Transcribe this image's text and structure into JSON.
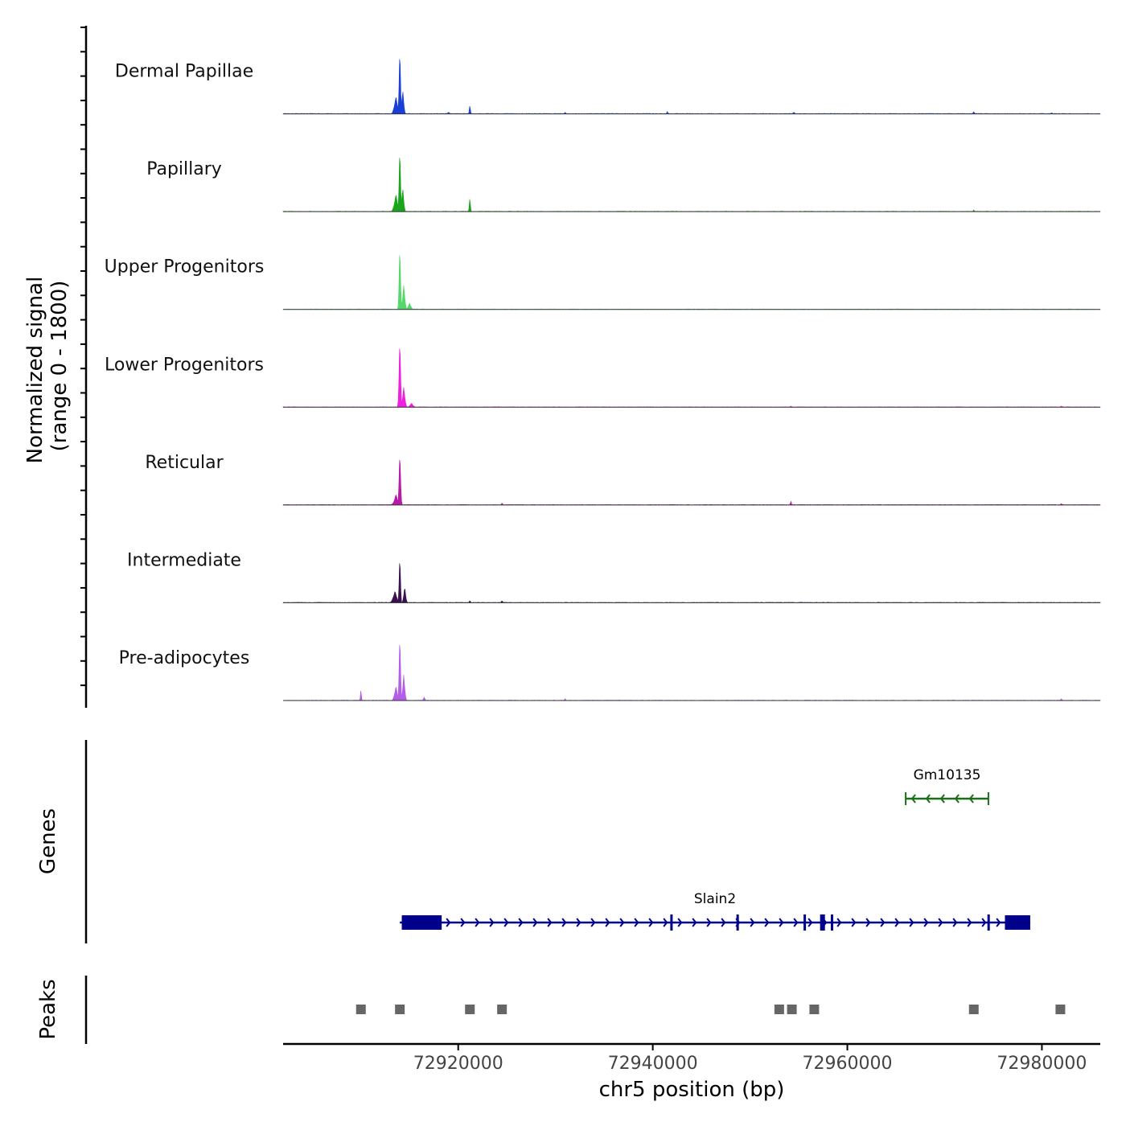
{
  "chart_data": {
    "type": "area",
    "title": "",
    "y_axis_title_line1": "Normalized signal",
    "y_axis_title_line2": "(range 0 - 1800)",
    "ylim": [
      0,
      1800
    ],
    "xlabel": "chr5 position (bp)",
    "xlim": [
      72902000,
      72986000
    ],
    "x_ticks": [
      72920000,
      72940000,
      72960000,
      72980000
    ],
    "x_tick_labels": [
      "72920000",
      "72940000",
      "72960000",
      "72980000"
    ],
    "tracks": [
      {
        "name": "Dermal Papillae",
        "color": "#1a3fd6",
        "peaks": [
          {
            "pos": 72914000,
            "height": 1750,
            "width": 220
          },
          {
            "pos": 72913600,
            "height": 420,
            "width": 500
          },
          {
            "pos": 72914300,
            "height": 600,
            "width": 300
          },
          {
            "pos": 72921200,
            "height": 230,
            "width": 160
          },
          {
            "pos": 72919000,
            "height": 40,
            "width": 200
          },
          {
            "pos": 72931000,
            "height": 40,
            "width": 150
          },
          {
            "pos": 72941500,
            "height": 60,
            "width": 150
          },
          {
            "pos": 72954500,
            "height": 40,
            "width": 200
          },
          {
            "pos": 72973000,
            "height": 60,
            "width": 150
          },
          {
            "pos": 72981000,
            "height": 30,
            "width": 150
          }
        ]
      },
      {
        "name": "Papillary",
        "color": "#1aa41a",
        "peaks": [
          {
            "pos": 72914000,
            "height": 1720,
            "width": 220
          },
          {
            "pos": 72913600,
            "height": 420,
            "width": 500
          },
          {
            "pos": 72914300,
            "height": 600,
            "width": 300
          },
          {
            "pos": 72921200,
            "height": 380,
            "width": 160
          },
          {
            "pos": 72973000,
            "height": 50,
            "width": 150
          }
        ]
      },
      {
        "name": "Upper Progenitors",
        "color": "#55d86a",
        "peaks": [
          {
            "pos": 72914000,
            "height": 1720,
            "width": 220
          },
          {
            "pos": 72914400,
            "height": 600,
            "width": 350
          },
          {
            "pos": 72915000,
            "height": 150,
            "width": 400
          }
        ]
      },
      {
        "name": "Lower Progenitors",
        "color": "#f01ee0",
        "peaks": [
          {
            "pos": 72914000,
            "height": 1820,
            "width": 240
          },
          {
            "pos": 72914400,
            "height": 500,
            "width": 350
          },
          {
            "pos": 72915200,
            "height": 100,
            "width": 400
          },
          {
            "pos": 72954200,
            "height": 30,
            "width": 150
          },
          {
            "pos": 72982000,
            "height": 30,
            "width": 150
          }
        ]
      },
      {
        "name": "Reticular",
        "color": "#b81aa8",
        "peaks": [
          {
            "pos": 72914000,
            "height": 1400,
            "width": 240
          },
          {
            "pos": 72913600,
            "height": 250,
            "width": 500
          },
          {
            "pos": 72924500,
            "height": 50,
            "width": 150
          },
          {
            "pos": 72954200,
            "height": 120,
            "width": 120
          },
          {
            "pos": 72982000,
            "height": 30,
            "width": 150
          }
        ]
      },
      {
        "name": "Intermediate",
        "color": "#3c1050",
        "peaks": [
          {
            "pos": 72914000,
            "height": 1300,
            "width": 200
          },
          {
            "pos": 72913500,
            "height": 280,
            "width": 550
          },
          {
            "pos": 72914500,
            "height": 400,
            "width": 300
          },
          {
            "pos": 72921200,
            "height": 60,
            "width": 150
          },
          {
            "pos": 72924500,
            "height": 60,
            "width": 150
          }
        ]
      },
      {
        "name": "Pre-adipocytes",
        "color": "#b35de8",
        "peaks": [
          {
            "pos": 72914000,
            "height": 1780,
            "width": 220
          },
          {
            "pos": 72913600,
            "height": 350,
            "width": 450
          },
          {
            "pos": 72914400,
            "height": 650,
            "width": 320
          },
          {
            "pos": 72910000,
            "height": 320,
            "width": 130
          },
          {
            "pos": 72916500,
            "height": 80,
            "width": 200
          },
          {
            "pos": 72931000,
            "height": 40,
            "width": 150
          },
          {
            "pos": 72982000,
            "height": 40,
            "width": 150
          }
        ]
      }
    ],
    "genes_title": "Genes",
    "genes": [
      {
        "name": "Gm10135",
        "strand": "-",
        "start": 72966000,
        "end": 72974500,
        "color": "#1a6e1a",
        "exons": []
      },
      {
        "name": "Slain2",
        "strand": "+",
        "start": 72914000,
        "end": 72978800,
        "color": "#00008b",
        "exons": [
          [
            72914200,
            72918300
          ],
          [
            72941800,
            72942000
          ],
          [
            72948600,
            72948800
          ],
          [
            72955500,
            72955700
          ],
          [
            72957200,
            72957700
          ],
          [
            72958300,
            72958500
          ],
          [
            72974400,
            72974600
          ],
          [
            72976200,
            72978800
          ]
        ]
      }
    ],
    "peaks_title": "Peaks",
    "peak_regions": [
      72910000,
      72914000,
      72921200,
      72924500,
      72953000,
      72954300,
      72956600,
      72973000,
      72981900
    ],
    "peak_color": "#666666"
  }
}
